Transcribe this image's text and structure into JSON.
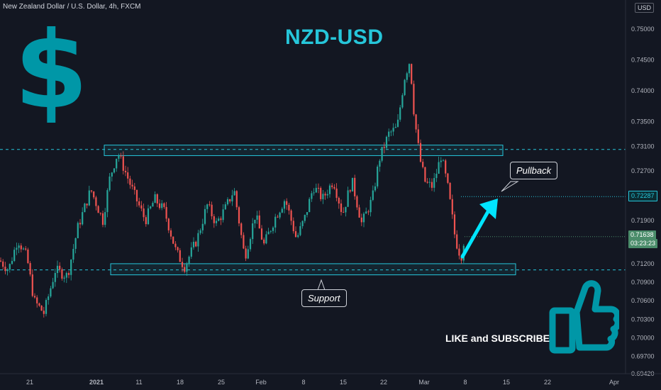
{
  "header": {
    "symbol_title": "New Zealand Dollar / U.S. Dollar, 4h, FXCM",
    "currency_button": "USD"
  },
  "annotations": {
    "title": "NZD-USD",
    "pullback_label": "Pullback",
    "support_label": "Support",
    "call_to_action": "LIKE and SUBSCRIBE",
    "dollar_glyph": "$",
    "dollar_icon": "dollar-icon",
    "thumb_icon": "thumbs-up-icon"
  },
  "price_tags": {
    "pullback_level": "0.72287",
    "last_price": "0.71638",
    "countdown": "03:23:23"
  },
  "colors": {
    "background": "#131722",
    "up_candle": "#26a69a",
    "down_candle": "#ef5350",
    "accent_cyan": "#26c6da",
    "zone_border": "#26c6da",
    "dollar_teal": "#0097a7"
  },
  "chart_data": {
    "type": "candlestick",
    "symbol": "NZD/USD",
    "interval": "4h",
    "source": "FXCM",
    "ylim": [
      0.6942,
      0.754
    ],
    "y_ticks": [
      "0.75000",
      "0.74500",
      "0.74000",
      "0.73500",
      "0.73100",
      "0.72700",
      "0.72287",
      "0.71900",
      "0.71638",
      "0.71200",
      "0.70900",
      "0.70600",
      "0.70300",
      "0.70000",
      "0.69700",
      "0.69420"
    ],
    "x_ticks": [
      "21",
      "2021",
      "11",
      "18",
      "25",
      "Feb",
      "8",
      "15",
      "22",
      "Mar",
      "8",
      "15",
      "22",
      "Apr"
    ],
    "resistance_level": 0.7305,
    "resistance_zone": [
      0.7295,
      0.7312
    ],
    "support_level": 0.711,
    "support_zone": [
      0.7102,
      0.712
    ],
    "pullback_target": 0.72287,
    "last_price": 0.71638,
    "price_path": [
      [
        0,
        0.7125
      ],
      [
        12,
        0.711
      ],
      [
        25,
        0.716
      ],
      [
        38,
        0.713
      ],
      [
        48,
        0.706
      ],
      [
        62,
        0.704
      ],
      [
        78,
        0.711
      ],
      [
        95,
        0.71
      ],
      [
        110,
        0.718
      ],
      [
        128,
        0.724
      ],
      [
        145,
        0.719
      ],
      [
        155,
        0.726
      ],
      [
        166,
        0.73
      ],
      [
        178,
        0.7265
      ],
      [
        190,
        0.723
      ],
      [
        205,
        0.719
      ],
      [
        218,
        0.7225
      ],
      [
        232,
        0.7205
      ],
      [
        248,
        0.714
      ],
      [
        260,
        0.7115
      ],
      [
        278,
        0.716
      ],
      [
        292,
        0.7215
      ],
      [
        305,
        0.7185
      ],
      [
        318,
        0.721
      ],
      [
        330,
        0.724
      ],
      [
        345,
        0.713
      ],
      [
        360,
        0.72
      ],
      [
        372,
        0.715
      ],
      [
        388,
        0.7195
      ],
      [
        402,
        0.7225
      ],
      [
        418,
        0.716
      ],
      [
        430,
        0.7195
      ],
      [
        442,
        0.7245
      ],
      [
        455,
        0.7225
      ],
      [
        470,
        0.7255
      ],
      [
        483,
        0.72
      ],
      [
        496,
        0.7255
      ],
      [
        510,
        0.7185
      ],
      [
        525,
        0.7225
      ],
      [
        535,
        0.729
      ],
      [
        548,
        0.733
      ],
      [
        560,
        0.734
      ],
      [
        570,
        0.742
      ],
      [
        578,
        0.745
      ],
      [
        584,
        0.736
      ],
      [
        592,
        0.729
      ],
      [
        600,
        0.725
      ],
      [
        610,
        0.7245
      ],
      [
        622,
        0.7295
      ],
      [
        632,
        0.724
      ],
      [
        642,
        0.716
      ],
      [
        650,
        0.713
      ],
      [
        655,
        0.7164
      ]
    ]
  }
}
